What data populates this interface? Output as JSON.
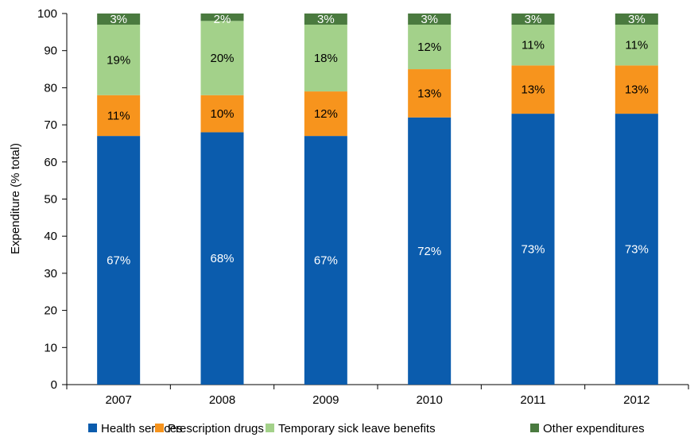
{
  "chart_data": {
    "type": "bar",
    "stacked": true,
    "title": "",
    "xlabel": "",
    "ylabel": "Expenditure (% total)",
    "ylim": [
      0,
      100
    ],
    "yticks": [
      0,
      10,
      20,
      30,
      40,
      50,
      60,
      70,
      80,
      90,
      100
    ],
    "categories": [
      "2007",
      "2008",
      "2009",
      "2010",
      "2011",
      "2012"
    ],
    "grid": false,
    "legend_position": "bottom",
    "series": [
      {
        "name": "Health services",
        "color": "#0b5cad",
        "label_color": "#ffffff",
        "values": [
          67,
          68,
          67,
          72,
          73,
          73
        ],
        "labels": [
          "67%",
          "68%",
          "67%",
          "72%",
          "73%",
          "73%"
        ]
      },
      {
        "name": "Prescription drugs",
        "color": "#f7941d",
        "label_color": "#000000",
        "values": [
          11,
          10,
          12,
          13,
          13,
          13
        ],
        "labels": [
          "11%",
          "10%",
          "12%",
          "13%",
          "13%",
          "13%"
        ]
      },
      {
        "name": "Temporary sick leave benefits",
        "color": "#a3d18a",
        "label_color": "#000000",
        "values": [
          19,
          20,
          18,
          12,
          11,
          11
        ],
        "labels": [
          "19%",
          "20%",
          "18%",
          "12%",
          "11%",
          "11%"
        ]
      },
      {
        "name": "Other expenditures",
        "color": "#4a7a3f",
        "label_color": "#ffffff",
        "values": [
          3,
          2,
          3,
          3,
          3,
          3
        ],
        "labels": [
          "3%",
          "2%",
          "3%",
          "3%",
          "3%",
          "3%"
        ]
      }
    ]
  }
}
